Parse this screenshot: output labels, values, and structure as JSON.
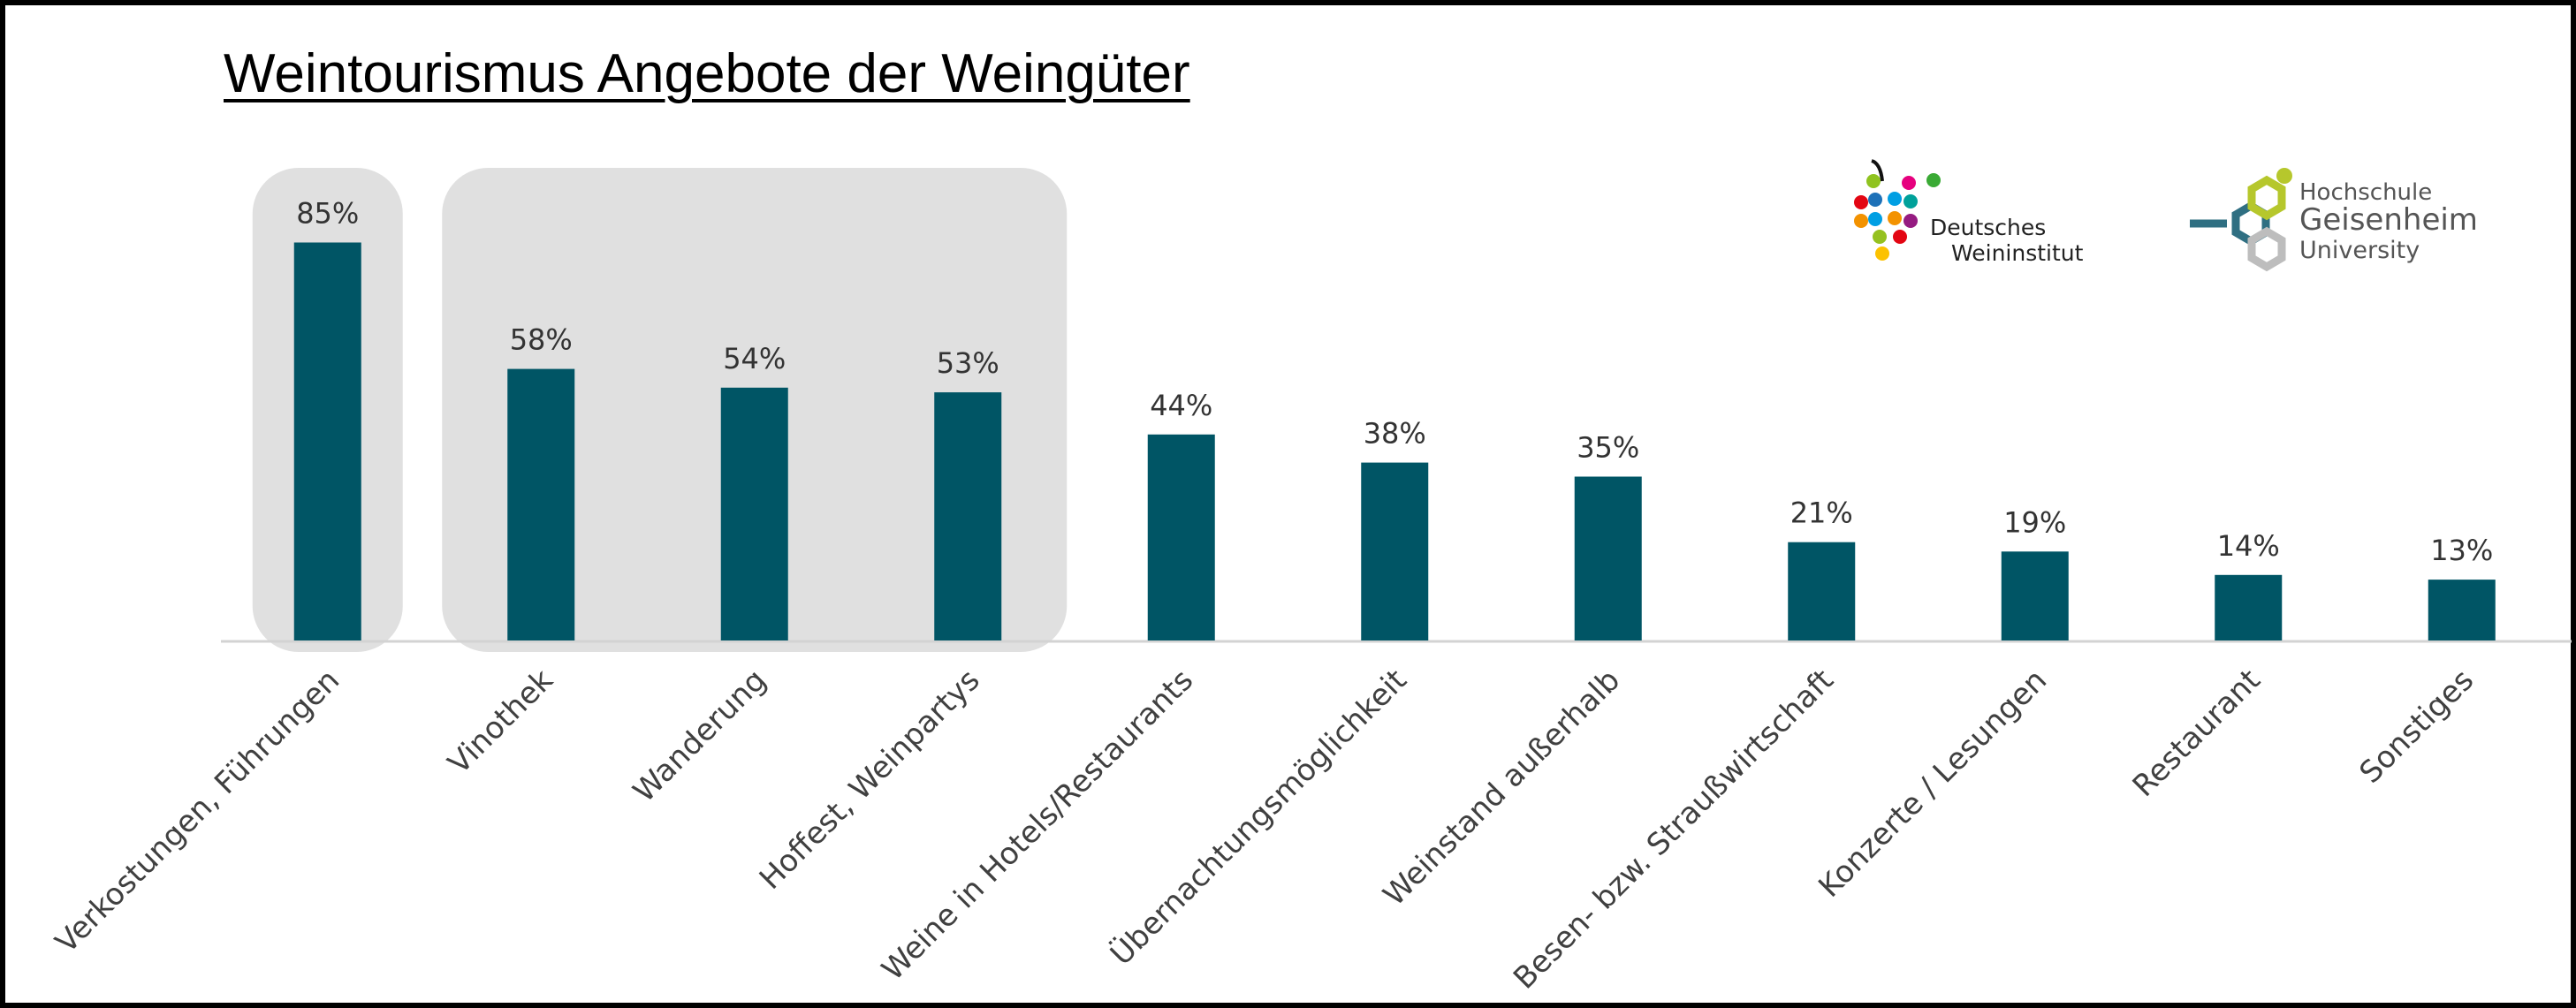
{
  "colors": {
    "bar": "#005565",
    "highlight": "#e0e0e0",
    "axis": "#d3d3d3",
    "text": "#404040"
  },
  "logos": {
    "dwi_line1": "Deutsches",
    "dwi_line2": "Weininstitut",
    "hgu_line1": "Hochschule",
    "hgu_line2": "Geisenheim",
    "hgu_line3": "University"
  },
  "chart_data": {
    "type": "bar",
    "title": "Weintourismus Angebote der Weingüter",
    "categories": [
      "Verkostungen, Führungen",
      "Vinothek",
      "Wanderung",
      "Hoffest, Weinpartys",
      "Weine in Hotels/Restaurants",
      "Übernachtungsmöglichkeit",
      "Weinstand außerhalb",
      "Besen- bzw. Straußwirtschaft",
      "Konzerte / Lesungen",
      "Restaurant",
      "Sonstiges"
    ],
    "values": [
      85,
      58,
      54,
      53,
      44,
      38,
      35,
      21,
      19,
      14,
      13
    ],
    "value_labels": [
      "85%",
      "58%",
      "54%",
      "53%",
      "44%",
      "38%",
      "35%",
      "21%",
      "19%",
      "14%",
      "13%"
    ],
    "highlight_groups": [
      [
        0,
        0
      ],
      [
        1,
        3
      ]
    ],
    "ylim": [
      0,
      100
    ],
    "grid": false,
    "legend": "none"
  }
}
